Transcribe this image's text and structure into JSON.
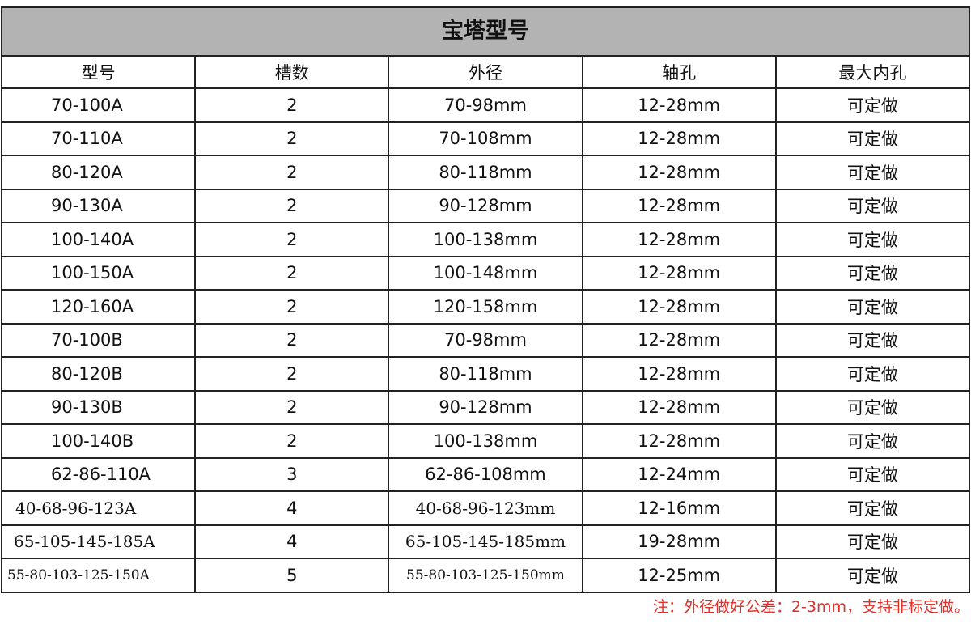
{
  "table": {
    "title": "宝塔型号",
    "headers": [
      "型号",
      "槽数",
      "外径",
      "轴孔",
      "最大内孔"
    ],
    "rows": [
      [
        "70-100A",
        "2",
        "70-98mm",
        "12-28mm",
        "可定做"
      ],
      [
        "70-110A",
        "2",
        "70-108mm",
        "12-28mm",
        "可定做"
      ],
      [
        "80-120A",
        "2",
        "80-118mm",
        "12-28mm",
        "可定做"
      ],
      [
        "90-130A",
        "2",
        "90-128mm",
        "12-28mm",
        "可定做"
      ],
      [
        "100-140A",
        "2",
        "100-138mm",
        "12-28mm",
        "可定做"
      ],
      [
        "100-150A",
        "2",
        "100-148mm",
        "12-28mm",
        "可定做"
      ],
      [
        "120-160A",
        "2",
        "120-158mm",
        "12-28mm",
        "可定做"
      ],
      [
        "70-100B",
        "2",
        "70-98mm",
        "12-28mm",
        "可定做"
      ],
      [
        "80-120B",
        "2",
        "80-118mm",
        "12-28mm",
        "可定做"
      ],
      [
        "90-130B",
        "2",
        "90-128mm",
        "12-28mm",
        "可定做"
      ],
      [
        "100-140B",
        "2",
        "100-138mm",
        "12-28mm",
        "可定做"
      ],
      [
        "62-86-110A",
        "3",
        "62-86-108mm",
        "12-24mm",
        "可定做"
      ],
      [
        "40-68-96-123A",
        "4",
        "40-68-96-123mm",
        "12-16mm",
        "可定做"
      ],
      [
        "65-105-145-185A",
        "4",
        "65-105-145-185mm",
        "19-28mm",
        "可定做"
      ],
      [
        "55-80-103-125-150A",
        "5",
        "55-80-103-125-150mm",
        "12-25mm",
        "可定做"
      ]
    ],
    "note": "注：外径做好公差：2-3mm，支持非标定做。"
  }
}
